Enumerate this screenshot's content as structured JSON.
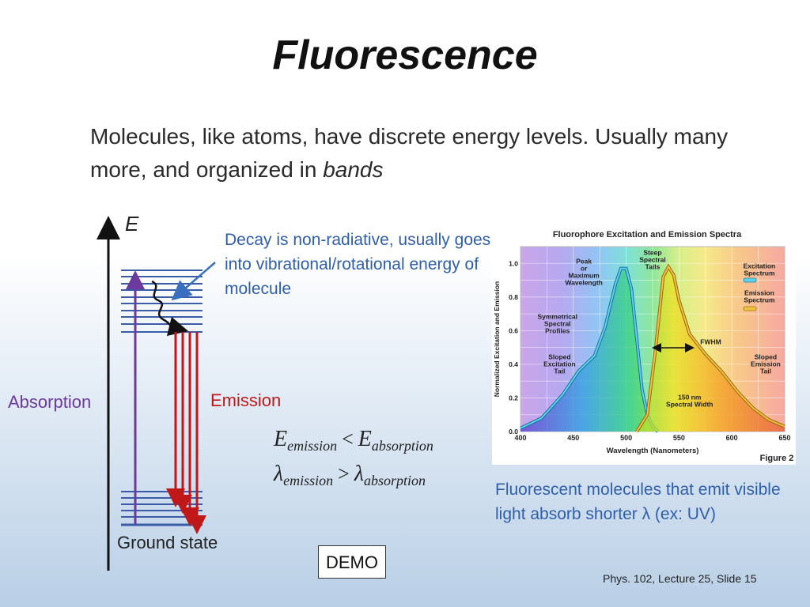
{
  "slide": {
    "title": "Fluorescence",
    "intro_text": "Molecules, like atoms, have discrete energy levels. Usually many more, and organized in ",
    "intro_italic": "bands",
    "energy_axis_label": "E",
    "decay_note": "Decay is non-radiative, usually goes into vibrational/rotational energy of molecule",
    "absorption_label": "Absorption",
    "emission_label": "Emission",
    "ground_state_label": "Ground state",
    "demo_label": "DEMO",
    "fluorescent_note": "Fluorescent molecules that emit visible light absorb shorter λ (ex: UV)",
    "footer": "Phys. 102, Lecture 25, Slide 15"
  },
  "equations": {
    "line1": {
      "left": "E",
      "left_sub": "emission",
      "op": "<",
      "right": "E",
      "right_sub": "absorption"
    },
    "line2": {
      "left": "λ",
      "left_sub": "emission",
      "op": ">",
      "right": "λ",
      "right_sub": "absorption"
    }
  },
  "colors": {
    "absorption": "#6b3a9c",
    "emission": "#c01818",
    "levels": "#3a5ba8",
    "note": "#2f5fa8"
  },
  "chart_data": {
    "type": "area",
    "title": "Fluorophore Excitation and Emission Spectra",
    "xlabel": "Wavelength (Nanometers)",
    "ylabel": "Normalized Excitation and Emission",
    "xlim": [
      400,
      650
    ],
    "ylim": [
      0,
      1.1
    ],
    "x_ticks": [
      "400",
      "450",
      "500",
      "550",
      "600",
      "650"
    ],
    "y_ticks": [
      "0.0",
      "0.2",
      "0.4",
      "0.6",
      "0.8",
      "1.0"
    ],
    "figure_label": "Figure 2",
    "series": [
      {
        "name": "Excitation Spectrum",
        "color": "#5ad2f0",
        "x": [
          400,
          420,
          440,
          455,
          470,
          480,
          490,
          495,
          500,
          505,
          510,
          515,
          520,
          525,
          530
        ],
        "y": [
          0.02,
          0.08,
          0.22,
          0.36,
          0.45,
          0.62,
          0.88,
          0.97,
          0.97,
          0.85,
          0.55,
          0.25,
          0.1,
          0.03,
          0.0
        ]
      },
      {
        "name": "Emission Spectrum",
        "color": "#f0c040",
        "x": [
          510,
          520,
          528,
          535,
          540,
          545,
          550,
          560,
          575,
          590,
          605,
          620,
          635,
          650
        ],
        "y": [
          0.0,
          0.1,
          0.5,
          0.92,
          0.98,
          0.93,
          0.78,
          0.58,
          0.46,
          0.36,
          0.24,
          0.14,
          0.07,
          0.03
        ]
      }
    ],
    "annotations": [
      {
        "text": "Peak or Maximum Wavelength"
      },
      {
        "text": "Steep Spectral Tails"
      },
      {
        "text": "Symmetrical Spectral Profiles"
      },
      {
        "text": "Sloped Excitation Tail"
      },
      {
        "text": "FWHM"
      },
      {
        "text": "Sloped Emission Tail"
      },
      {
        "text": "150 nm Spectral Width"
      }
    ]
  }
}
